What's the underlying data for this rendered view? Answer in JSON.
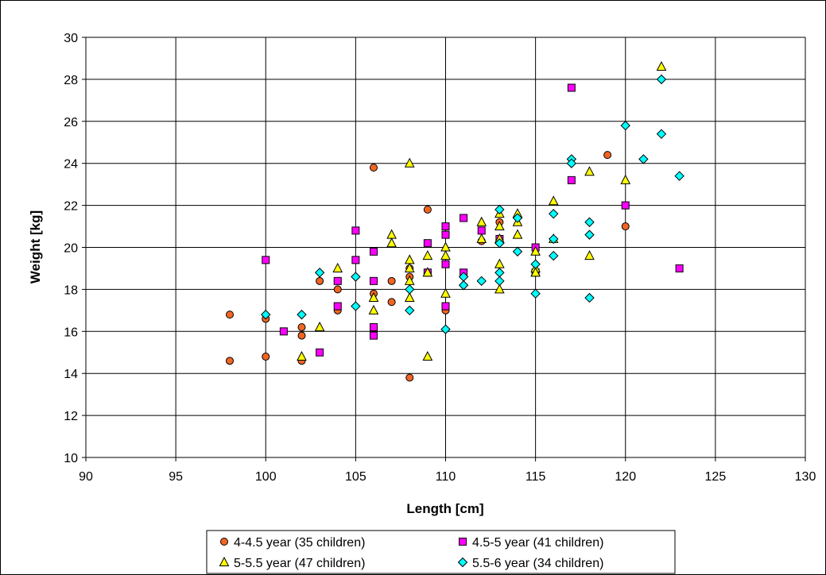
{
  "chart_data": {
    "type": "scatter",
    "title": "",
    "xlabel": "Length [cm]",
    "ylabel": "Weight [kg]",
    "xlim": [
      90,
      130
    ],
    "ylim": [
      10,
      30
    ],
    "xticks": [
      "90",
      "95",
      "100",
      "105",
      "110",
      "115",
      "120",
      "125",
      "130"
    ],
    "yticks": [
      "10",
      "12",
      "14",
      "16",
      "18",
      "20",
      "22",
      "24",
      "26",
      "28",
      "30"
    ],
    "grid": true,
    "legend_position": "bottom",
    "series": [
      {
        "name": "4-4.5 year (35 children)",
        "marker": "circle",
        "color": "#f26522",
        "points": [
          [
            98,
            16.8
          ],
          [
            98,
            14.6
          ],
          [
            100,
            16.6
          ],
          [
            100,
            14.8
          ],
          [
            102,
            16.2
          ],
          [
            102,
            15.8
          ],
          [
            102,
            14.6
          ],
          [
            103,
            18.4
          ],
          [
            104,
            18.4
          ],
          [
            104,
            18.0
          ],
          [
            104,
            17.0
          ],
          [
            106,
            23.8
          ],
          [
            106,
            17.8
          ],
          [
            107,
            18.4
          ],
          [
            107,
            17.4
          ],
          [
            108,
            19.0
          ],
          [
            108,
            18.6
          ],
          [
            108,
            13.8
          ],
          [
            109,
            21.8
          ],
          [
            109,
            18.8
          ],
          [
            110,
            17.0
          ],
          [
            112,
            20.3
          ],
          [
            113,
            21.2
          ],
          [
            119,
            24.4
          ],
          [
            120,
            21.0
          ]
        ]
      },
      {
        "name": "4.5-5 year (41 children)",
        "marker": "square",
        "color": "#ff00ff",
        "points": [
          [
            100,
            19.4
          ],
          [
            101,
            16.0
          ],
          [
            103,
            15.0
          ],
          [
            104,
            18.4
          ],
          [
            104,
            17.2
          ],
          [
            105,
            20.8
          ],
          [
            105,
            19.4
          ],
          [
            106,
            19.8
          ],
          [
            106,
            18.4
          ],
          [
            106,
            16.2
          ],
          [
            106,
            15.8
          ],
          [
            109,
            20.2
          ],
          [
            109,
            18.8
          ],
          [
            110,
            21.0
          ],
          [
            110,
            20.6
          ],
          [
            110,
            19.2
          ],
          [
            110,
            17.2
          ],
          [
            111,
            21.4
          ],
          [
            111,
            18.8
          ],
          [
            112,
            20.8
          ],
          [
            113,
            20.4
          ],
          [
            115,
            20.0
          ],
          [
            115,
            18.8
          ],
          [
            117,
            27.6
          ],
          [
            117,
            23.2
          ],
          [
            120,
            22.0
          ],
          [
            123,
            19.0
          ]
        ]
      },
      {
        "name": "5-5.5 year (47 children)",
        "marker": "triangle",
        "color": "#ffff00",
        "points": [
          [
            102,
            14.8
          ],
          [
            103,
            16.2
          ],
          [
            104,
            19.0
          ],
          [
            106,
            17.6
          ],
          [
            106,
            17.0
          ],
          [
            107,
            20.6
          ],
          [
            107,
            20.2
          ],
          [
            108,
            24.0
          ],
          [
            108,
            19.4
          ],
          [
            108,
            19.0
          ],
          [
            108,
            18.4
          ],
          [
            108,
            17.6
          ],
          [
            109,
            19.6
          ],
          [
            109,
            18.8
          ],
          [
            109,
            14.8
          ],
          [
            110,
            20.0
          ],
          [
            110,
            19.6
          ],
          [
            110,
            17.8
          ],
          [
            112,
            21.2
          ],
          [
            112,
            20.4
          ],
          [
            113,
            21.6
          ],
          [
            113,
            21.0
          ],
          [
            113,
            20.4
          ],
          [
            113,
            19.2
          ],
          [
            113,
            18.0
          ],
          [
            114,
            21.6
          ],
          [
            114,
            21.2
          ],
          [
            114,
            20.6
          ],
          [
            115,
            19.8
          ],
          [
            115,
            19.0
          ],
          [
            115,
            18.8
          ],
          [
            116,
            22.2
          ],
          [
            116,
            20.4
          ],
          [
            118,
            23.6
          ],
          [
            118,
            19.6
          ],
          [
            120,
            23.2
          ],
          [
            122,
            28.6
          ]
        ]
      },
      {
        "name": "5.5-6 year (34 children)",
        "marker": "diamond",
        "color": "#00ffff",
        "points": [
          [
            100,
            16.8
          ],
          [
            102,
            16.8
          ],
          [
            103,
            18.8
          ],
          [
            105,
            18.6
          ],
          [
            105,
            17.2
          ],
          [
            108,
            18.0
          ],
          [
            108,
            17.0
          ],
          [
            110,
            16.1
          ],
          [
            111,
            18.6
          ],
          [
            111,
            18.2
          ],
          [
            112,
            18.4
          ],
          [
            113,
            21.8
          ],
          [
            113,
            20.2
          ],
          [
            113,
            18.8
          ],
          [
            113,
            18.4
          ],
          [
            114,
            21.4
          ],
          [
            114,
            19.8
          ],
          [
            115,
            19.2
          ],
          [
            115,
            17.8
          ],
          [
            116,
            21.6
          ],
          [
            116,
            20.4
          ],
          [
            116,
            19.6
          ],
          [
            117,
            24.2
          ],
          [
            117,
            24.0
          ],
          [
            118,
            21.2
          ],
          [
            118,
            20.6
          ],
          [
            118,
            17.6
          ],
          [
            120,
            25.8
          ],
          [
            121,
            24.2
          ],
          [
            122,
            28.0
          ],
          [
            122,
            25.4
          ],
          [
            123,
            23.4
          ]
        ]
      }
    ]
  }
}
